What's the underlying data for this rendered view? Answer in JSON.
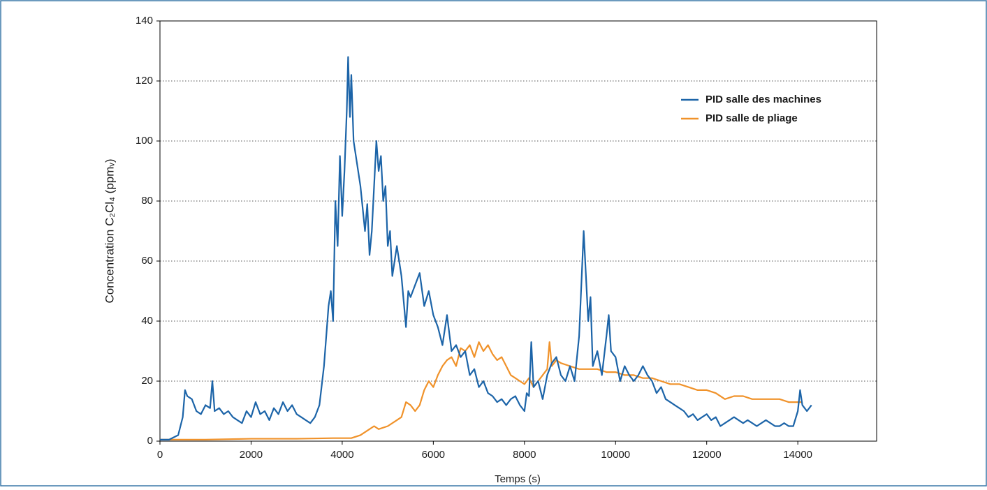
{
  "chart_data": {
    "type": "line",
    "x_label": "Temps (s)",
    "y_label": "Concentration C₂Cl₄ (ppmᵥ)",
    "xlim": [
      0,
      15730
    ],
    "ylim": [
      0,
      140
    ],
    "xticks": [
      0,
      2000,
      4000,
      6000,
      8000,
      10000,
      12000,
      14000
    ],
    "yticks": [
      0,
      20,
      40,
      60,
      80,
      100,
      120,
      140
    ],
    "grid": true,
    "legend": "upper right",
    "series": [
      {
        "name": "PID salle des machines",
        "color": "#1c64a8",
        "x": [
          0,
          200,
          400,
          500,
          550,
          600,
          700,
          800,
          900,
          1000,
          1100,
          1150,
          1200,
          1300,
          1400,
          1500,
          1600,
          1700,
          1800,
          1900,
          2000,
          2100,
          2200,
          2300,
          2400,
          2500,
          2600,
          2700,
          2800,
          2900,
          3000,
          3100,
          3200,
          3300,
          3400,
          3500,
          3600,
          3700,
          3750,
          3800,
          3850,
          3900,
          3950,
          4000,
          4050,
          4100,
          4130,
          4170,
          4200,
          4250,
          4300,
          4400,
          4500,
          4550,
          4600,
          4650,
          4700,
          4750,
          4800,
          4850,
          4900,
          4950,
          5000,
          5050,
          5100,
          5200,
          5300,
          5400,
          5450,
          5500,
          5600,
          5700,
          5800,
          5900,
          6000,
          6100,
          6200,
          6300,
          6400,
          6500,
          6600,
          6700,
          6800,
          6900,
          7000,
          7100,
          7200,
          7300,
          7400,
          7500,
          7600,
          7700,
          7800,
          7900,
          8000,
          8050,
          8100,
          8150,
          8200,
          8300,
          8400,
          8500,
          8600,
          8700,
          8800,
          8900,
          9000,
          9100,
          9200,
          9300,
          9350,
          9400,
          9450,
          9500,
          9600,
          9700,
          9800,
          9850,
          9900,
          10000,
          10100,
          10200,
          10300,
          10400,
          10500,
          10600,
          10700,
          10800,
          10900,
          11000,
          11100,
          11200,
          11300,
          11400,
          11500,
          11600,
          11700,
          11800,
          11900,
          12000,
          12100,
          12200,
          12300,
          12400,
          12500,
          12600,
          12700,
          12800,
          12900,
          13000,
          13100,
          13200,
          13300,
          13400,
          13500,
          13600,
          13700,
          13800,
          13900,
          14000,
          14050,
          14100,
          14200,
          14300
        ],
        "values": [
          0.5,
          0.5,
          2,
          8,
          17,
          15,
          14,
          10,
          9,
          12,
          11,
          20,
          10,
          11,
          9,
          10,
          8,
          7,
          6,
          10,
          8,
          13,
          9,
          10,
          7,
          11,
          9,
          13,
          10,
          12,
          9,
          8,
          7,
          6,
          8,
          12,
          25,
          45,
          50,
          40,
          80,
          65,
          95,
          75,
          90,
          110,
          128,
          108,
          122,
          100,
          95,
          85,
          70,
          79,
          62,
          70,
          85,
          100,
          90,
          95,
          80,
          85,
          65,
          70,
          55,
          65,
          55,
          38,
          50,
          48,
          52,
          56,
          45,
          50,
          42,
          38,
          32,
          42,
          30,
          32,
          28,
          30,
          22,
          24,
          18,
          20,
          16,
          15,
          13,
          14,
          12,
          14,
          15,
          12,
          10,
          16,
          15,
          33,
          18,
          20,
          14,
          22,
          26,
          28,
          22,
          20,
          25,
          20,
          35,
          70,
          55,
          40,
          48,
          25,
          30,
          22,
          35,
          42,
          30,
          28,
          20,
          25,
          22,
          20,
          22,
          25,
          22,
          20,
          16,
          18,
          14,
          13,
          12,
          11,
          10,
          8,
          9,
          7,
          8,
          9,
          7,
          8,
          5,
          6,
          7,
          8,
          7,
          6,
          7,
          6,
          5,
          6,
          7,
          6,
          5,
          5,
          6,
          5,
          5,
          10,
          17,
          12,
          10,
          12
        ]
      },
      {
        "name": "PID salle de pliage",
        "color": "#f0922a",
        "x": [
          0,
          1000,
          2000,
          3000,
          3800,
          4000,
          4200,
          4400,
          4600,
          4700,
          4800,
          5000,
          5200,
          5300,
          5400,
          5500,
          5600,
          5700,
          5800,
          5900,
          6000,
          6100,
          6200,
          6300,
          6400,
          6500,
          6600,
          6700,
          6800,
          6900,
          7000,
          7100,
          7200,
          7300,
          7400,
          7500,
          7600,
          7700,
          7800,
          7900,
          8000,
          8100,
          8200,
          8300,
          8400,
          8500,
          8550,
          8600,
          8700,
          8800,
          9000,
          9200,
          9400,
          9600,
          9800,
          10000,
          10200,
          10400,
          10600,
          10800,
          11000,
          11200,
          11400,
          11600,
          11800,
          12000,
          12200,
          12400,
          12600,
          12800,
          13000,
          13200,
          13400,
          13600,
          13800,
          14000,
          14100
        ],
        "values": [
          0.5,
          0.5,
          0.8,
          0.8,
          1,
          1,
          1,
          2,
          4,
          5,
          4,
          5,
          7,
          8,
          13,
          12,
          10,
          12,
          17,
          20,
          18,
          22,
          25,
          27,
          28,
          25,
          31,
          30,
          32,
          28,
          33,
          30,
          32,
          29,
          27,
          28,
          25,
          22,
          21,
          20,
          19,
          21,
          18,
          20,
          22,
          24,
          33,
          25,
          27,
          26,
          25,
          24,
          24,
          24,
          23,
          23,
          22,
          22,
          21,
          21,
          20,
          19,
          19,
          18,
          17,
          17,
          16,
          14,
          15,
          15,
          14,
          14,
          14,
          14,
          13,
          13,
          13
        ]
      }
    ]
  }
}
